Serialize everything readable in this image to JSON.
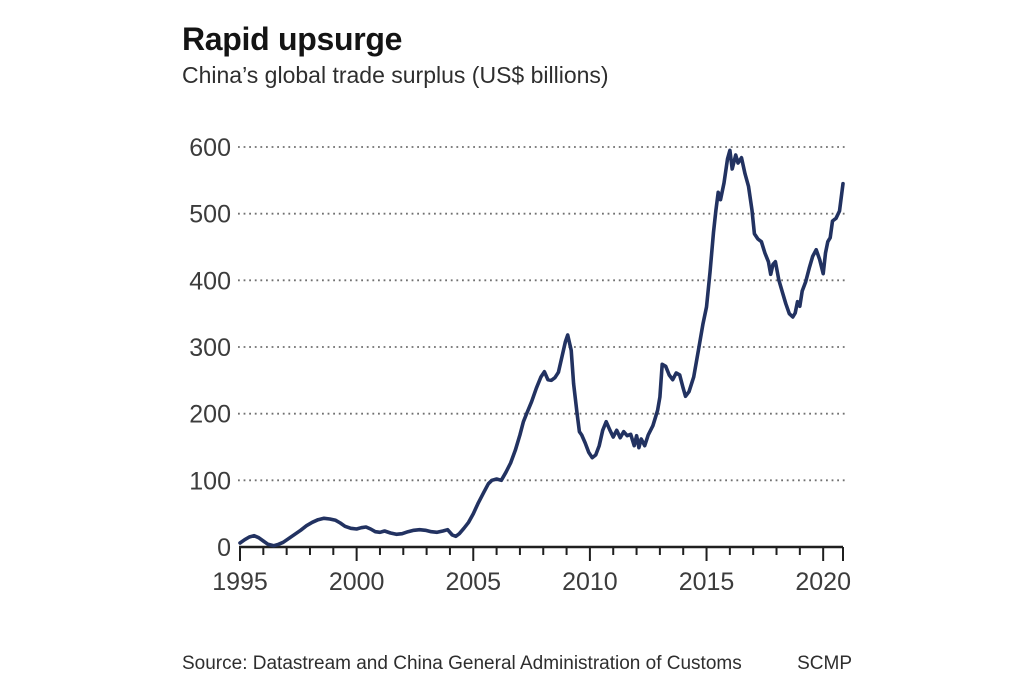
{
  "page": {
    "background": "#ffffff"
  },
  "header": {
    "title": "Rapid upsurge",
    "subtitle": "China’s global trade surplus (US$ billions)"
  },
  "footer": {
    "source": "Source: Datastream and China General Administration of Customs",
    "credit": "SCMP"
  },
  "colors": {
    "background": "#ffffff",
    "line": "#223261",
    "axis": "#1f1f1f",
    "grid": "#707070",
    "tick_label": "#3c3c3c",
    "title": "#141414",
    "subtitle": "#2e2e2e",
    "footer_text": "#2e2e2e"
  },
  "chart_data": {
    "type": "line",
    "title": "Rapid upsurge",
    "subtitle": "China’s global trade surplus (US$ billions)",
    "xlabel": "",
    "ylabel": "",
    "unit": "US$ billions",
    "xlim": [
      1995,
      2020.85
    ],
    "ylim": [
      0,
      600
    ],
    "y_ticks": [
      0,
      100,
      200,
      300,
      400,
      500,
      600
    ],
    "x_ticks": [
      1995,
      2000,
      2005,
      2010,
      2015,
      2020
    ],
    "x_minor_start": 1995,
    "x_minor_end": 2020,
    "grid": "horizontal-dotted",
    "legend": "none",
    "series": [
      {
        "name": "China's global trade surplus (US$ billions)",
        "points": [
          [
            1995.0,
            6
          ],
          [
            1995.2,
            11
          ],
          [
            1995.4,
            15
          ],
          [
            1995.6,
            17
          ],
          [
            1995.8,
            14
          ],
          [
            1996.0,
            9
          ],
          [
            1996.2,
            4
          ],
          [
            1996.45,
            2
          ],
          [
            1996.65,
            4
          ],
          [
            1996.85,
            7
          ],
          [
            1997.1,
            13
          ],
          [
            1997.35,
            19
          ],
          [
            1997.6,
            25
          ],
          [
            1997.85,
            32
          ],
          [
            1998.1,
            37
          ],
          [
            1998.35,
            41
          ],
          [
            1998.6,
            43
          ],
          [
            1998.85,
            42
          ],
          [
            1999.1,
            40
          ],
          [
            1999.3,
            36
          ],
          [
            1999.5,
            31
          ],
          [
            1999.75,
            28
          ],
          [
            2000.0,
            27
          ],
          [
            2000.2,
            29
          ],
          [
            2000.4,
            30
          ],
          [
            2000.6,
            27
          ],
          [
            2000.8,
            23
          ],
          [
            2001.0,
            22
          ],
          [
            2001.2,
            24
          ],
          [
            2001.45,
            21
          ],
          [
            2001.7,
            19
          ],
          [
            2001.95,
            20
          ],
          [
            2002.2,
            23
          ],
          [
            2002.45,
            25
          ],
          [
            2002.7,
            26
          ],
          [
            2002.95,
            25
          ],
          [
            2003.2,
            23
          ],
          [
            2003.45,
            22
          ],
          [
            2003.7,
            24
          ],
          [
            2003.9,
            26
          ],
          [
            2004.1,
            18
          ],
          [
            2004.25,
            16
          ],
          [
            2004.4,
            20
          ],
          [
            2004.6,
            28
          ],
          [
            2004.8,
            37
          ],
          [
            2005.0,
            50
          ],
          [
            2005.2,
            65
          ],
          [
            2005.45,
            82
          ],
          [
            2005.65,
            95
          ],
          [
            2005.8,
            100
          ],
          [
            2006.0,
            102
          ],
          [
            2006.2,
            100
          ],
          [
            2006.4,
            112
          ],
          [
            2006.6,
            126
          ],
          [
            2006.8,
            145
          ],
          [
            2007.0,
            168
          ],
          [
            2007.15,
            188
          ],
          [
            2007.3,
            201
          ],
          [
            2007.5,
            218
          ],
          [
            2007.7,
            238
          ],
          [
            2007.9,
            255
          ],
          [
            2008.05,
            263
          ],
          [
            2008.2,
            251
          ],
          [
            2008.35,
            250
          ],
          [
            2008.5,
            254
          ],
          [
            2008.65,
            262
          ],
          [
            2008.8,
            285
          ],
          [
            2008.95,
            308
          ],
          [
            2009.05,
            318
          ],
          [
            2009.2,
            295
          ],
          [
            2009.3,
            245
          ],
          [
            2009.45,
            200
          ],
          [
            2009.55,
            173
          ],
          [
            2009.65,
            168
          ],
          [
            2009.8,
            156
          ],
          [
            2009.95,
            142
          ],
          [
            2010.1,
            134
          ],
          [
            2010.25,
            138
          ],
          [
            2010.4,
            152
          ],
          [
            2010.55,
            175
          ],
          [
            2010.7,
            188
          ],
          [
            2010.85,
            176
          ],
          [
            2011.0,
            165
          ],
          [
            2011.15,
            175
          ],
          [
            2011.3,
            164
          ],
          [
            2011.45,
            173
          ],
          [
            2011.6,
            167
          ],
          [
            2011.75,
            169
          ],
          [
            2011.9,
            152
          ],
          [
            2012.0,
            167
          ],
          [
            2012.1,
            149
          ],
          [
            2012.2,
            162
          ],
          [
            2012.35,
            152
          ],
          [
            2012.5,
            168
          ],
          [
            2012.7,
            182
          ],
          [
            2012.9,
            205
          ],
          [
            2013.0,
            225
          ],
          [
            2013.1,
            274
          ],
          [
            2013.25,
            271
          ],
          [
            2013.4,
            258
          ],
          [
            2013.55,
            251
          ],
          [
            2013.7,
            261
          ],
          [
            2013.85,
            258
          ],
          [
            2014.0,
            238
          ],
          [
            2014.1,
            226
          ],
          [
            2014.25,
            233
          ],
          [
            2014.45,
            255
          ],
          [
            2014.65,
            295
          ],
          [
            2014.85,
            335
          ],
          [
            2015.0,
            360
          ],
          [
            2015.15,
            412
          ],
          [
            2015.3,
            472
          ],
          [
            2015.4,
            505
          ],
          [
            2015.5,
            532
          ],
          [
            2015.6,
            521
          ],
          [
            2015.75,
            546
          ],
          [
            2015.9,
            582
          ],
          [
            2016.0,
            595
          ],
          [
            2016.1,
            567
          ],
          [
            2016.25,
            588
          ],
          [
            2016.35,
            576
          ],
          [
            2016.5,
            584
          ],
          [
            2016.65,
            560
          ],
          [
            2016.8,
            541
          ],
          [
            2016.95,
            505
          ],
          [
            2017.05,
            470
          ],
          [
            2017.2,
            462
          ],
          [
            2017.35,
            458
          ],
          [
            2017.5,
            441
          ],
          [
            2017.65,
            428
          ],
          [
            2017.75,
            409
          ],
          [
            2017.85,
            424
          ],
          [
            2017.95,
            428
          ],
          [
            2018.1,
            400
          ],
          [
            2018.25,
            382
          ],
          [
            2018.4,
            365
          ],
          [
            2018.55,
            350
          ],
          [
            2018.7,
            345
          ],
          [
            2018.8,
            351
          ],
          [
            2018.9,
            368
          ],
          [
            2019.0,
            361
          ],
          [
            2019.1,
            384
          ],
          [
            2019.25,
            398
          ],
          [
            2019.4,
            418
          ],
          [
            2019.55,
            436
          ],
          [
            2019.7,
            446
          ],
          [
            2019.85,
            431
          ],
          [
            2020.0,
            410
          ],
          [
            2020.1,
            441
          ],
          [
            2020.2,
            458
          ],
          [
            2020.3,
            464
          ],
          [
            2020.4,
            489
          ],
          [
            2020.55,
            493
          ],
          [
            2020.7,
            504
          ],
          [
            2020.85,
            545
          ]
        ]
      }
    ]
  }
}
